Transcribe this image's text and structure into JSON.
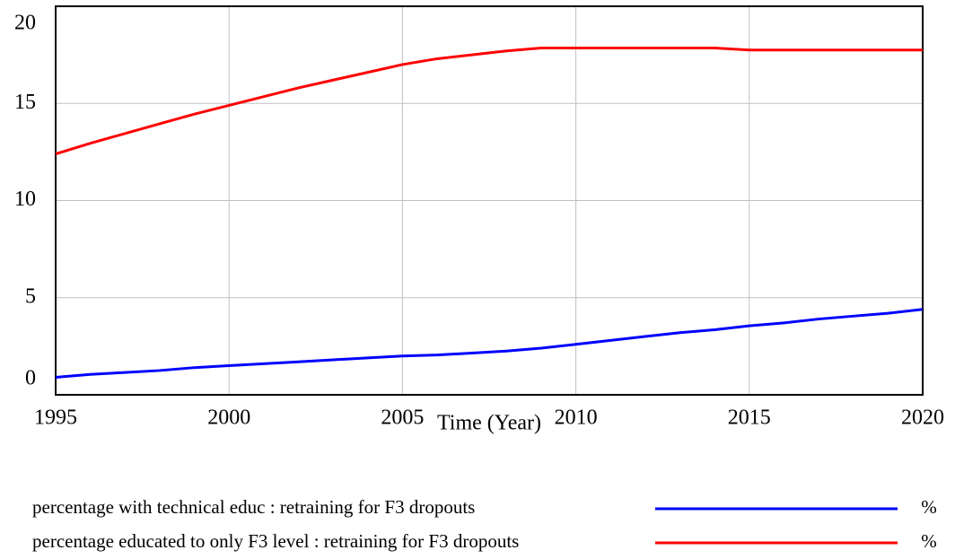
{
  "chart_data": {
    "type": "line",
    "x_label": "Time (Year)",
    "x": [
      1995,
      1996,
      1997,
      1998,
      1999,
      2000,
      2001,
      2002,
      2003,
      2004,
      2005,
      2006,
      2007,
      2008,
      2009,
      2010,
      2011,
      2012,
      2013,
      2014,
      2015,
      2016,
      2017,
      2018,
      2019,
      2020
    ],
    "xlim": [
      1995,
      2020
    ],
    "xticks": [
      1995,
      2000,
      2005,
      2010,
      2015,
      2020
    ],
    "ylim": [
      0,
      20
    ],
    "yticks": [
      0,
      5,
      10,
      15,
      20
    ],
    "grid": true,
    "series": [
      {
        "name": "percentage with technical educ : retraining for F3 dropouts",
        "unit": "%",
        "color": "#0000ff",
        "values": [
          0.9,
          1.05,
          1.15,
          1.25,
          1.4,
          1.5,
          1.6,
          1.7,
          1.8,
          1.9,
          2.0,
          2.05,
          2.15,
          2.25,
          2.4,
          2.6,
          2.8,
          3.0,
          3.2,
          3.35,
          3.55,
          3.7,
          3.9,
          4.05,
          4.2,
          4.4
        ]
      },
      {
        "name": "percentage educated to only F3 level : retraining for F3 dropouts",
        "unit": "%",
        "color": "#ff0000",
        "values": [
          12.4,
          12.95,
          13.45,
          13.95,
          14.45,
          14.9,
          15.35,
          15.8,
          16.2,
          16.6,
          17.0,
          17.3,
          17.5,
          17.7,
          17.85,
          17.85,
          17.85,
          17.85,
          17.85,
          17.85,
          17.75,
          17.75,
          17.75,
          17.75,
          17.75,
          17.75
        ]
      }
    ]
  }
}
